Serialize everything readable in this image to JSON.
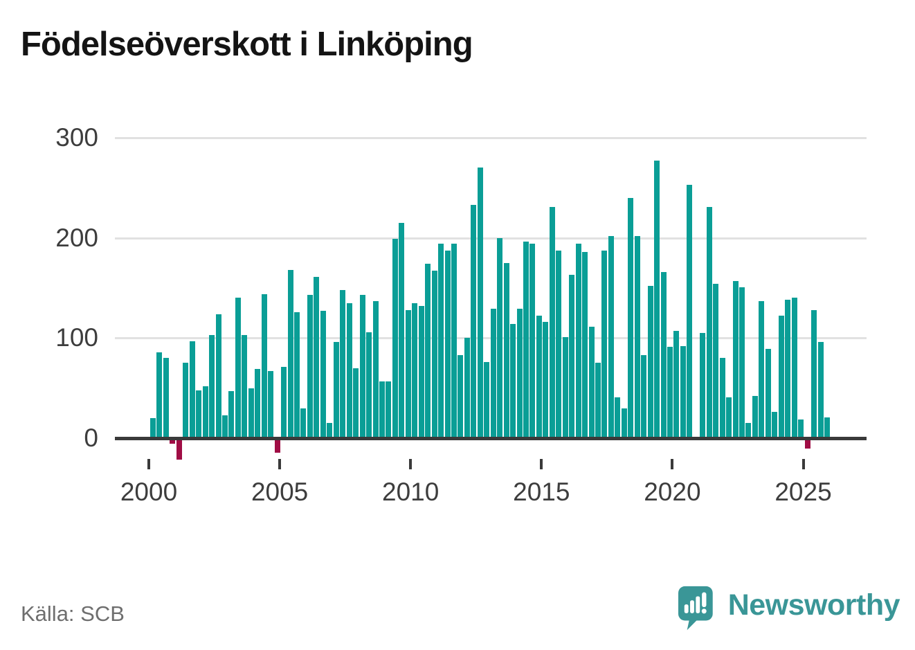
{
  "title": "Födelseöverskott i Linköping",
  "source": "Källa: SCB",
  "branding": {
    "name": "Newsworthy",
    "color": "#3a9697"
  },
  "chart_data": {
    "type": "bar",
    "title": "Födelseöverskott i Linköping",
    "frequency": "quarterly",
    "start": "2000 Q1",
    "end": "2025 Q4",
    "xlabel": "",
    "ylabel": "",
    "y_ticks": [
      0,
      100,
      200,
      300
    ],
    "gridlines": [
      100,
      200,
      300
    ],
    "ylim": [
      -30,
      310
    ],
    "x_tick_years": [
      "2000",
      "2005",
      "2010",
      "2015",
      "2020",
      "2025"
    ],
    "positive_color": "#0a9e96",
    "negative_color": "#a00d45",
    "grid_on": true,
    "legend": "none",
    "years": [
      {
        "year": 2000,
        "values": [
          20,
          86,
          80,
          -4
        ]
      },
      {
        "year": 2001,
        "values": [
          -20,
          75,
          97,
          48
        ]
      },
      {
        "year": 2002,
        "values": [
          52,
          103,
          124,
          23
        ]
      },
      {
        "year": 2003,
        "values": [
          47,
          140,
          103,
          50
        ]
      },
      {
        "year": 2004,
        "values": [
          69,
          144,
          67,
          -13
        ]
      },
      {
        "year": 2005,
        "values": [
          71,
          168,
          126,
          30
        ]
      },
      {
        "year": 2006,
        "values": [
          143,
          161,
          127,
          15
        ]
      },
      {
        "year": 2007,
        "values": [
          96,
          148,
          135,
          70
        ]
      },
      {
        "year": 2008,
        "values": [
          143,
          106,
          137,
          57
        ]
      },
      {
        "year": 2009,
        "values": [
          57,
          199,
          215,
          128
        ]
      },
      {
        "year": 2010,
        "values": [
          135,
          132,
          174,
          167
        ]
      },
      {
        "year": 2011,
        "values": [
          194,
          187,
          194,
          83
        ]
      },
      {
        "year": 2012,
        "values": [
          100,
          233,
          270,
          76
        ]
      },
      {
        "year": 2013,
        "values": [
          129,
          200,
          175,
          114
        ]
      },
      {
        "year": 2014,
        "values": [
          129,
          196,
          194,
          122
        ]
      },
      {
        "year": 2015,
        "values": [
          116,
          231,
          187,
          101
        ]
      },
      {
        "year": 2016,
        "values": [
          163,
          194,
          186,
          111
        ]
      },
      {
        "year": 2017,
        "values": [
          75,
          187,
          202,
          41
        ]
      },
      {
        "year": 2018,
        "values": [
          30,
          240,
          202,
          83
        ]
      },
      {
        "year": 2019,
        "values": [
          152,
          277,
          166,
          91
        ]
      },
      {
        "year": 2020,
        "values": [
          107,
          92,
          253,
          0
        ]
      },
      {
        "year": 2021,
        "values": [
          105,
          231,
          154,
          80
        ]
      },
      {
        "year": 2022,
        "values": [
          41,
          157,
          151,
          15
        ]
      },
      {
        "year": 2023,
        "values": [
          42,
          137,
          89,
          26
        ]
      },
      {
        "year": 2024,
        "values": [
          122,
          138,
          140,
          19
        ]
      },
      {
        "year": 2025,
        "values": [
          -9,
          128,
          96,
          21
        ]
      }
    ]
  }
}
